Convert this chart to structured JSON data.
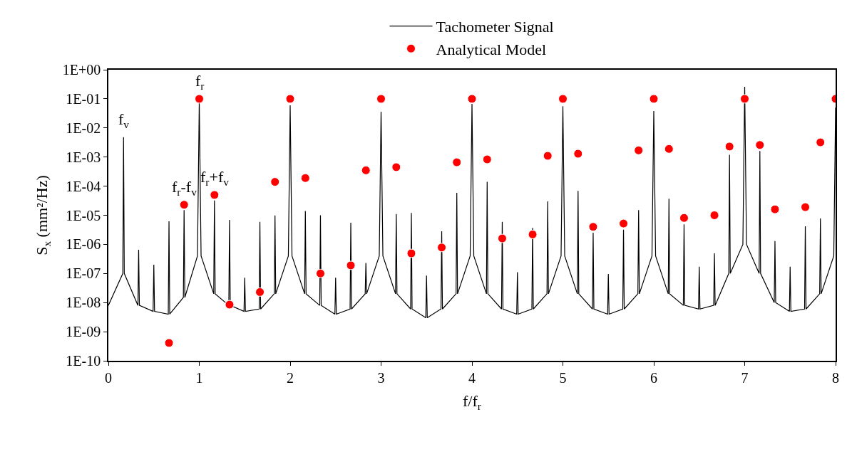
{
  "chart_data": {
    "type": "line",
    "xlabel": "f/f$_{r}$",
    "ylabel": "S$_{x}$ (mm²/Hz)",
    "log": "y",
    "legend": "top",
    "xlim": [
      0,
      8
    ],
    "xticks": [
      0,
      1,
      2,
      3,
      4,
      5,
      6,
      7,
      8
    ],
    "ylim": [
      1e-10,
      1
    ],
    "yticks": [
      {
        "value": 1,
        "label": "1E+00"
      },
      {
        "value": 0.1,
        "label": "1E-01"
      },
      {
        "value": 0.01,
        "label": "1E-02"
      },
      {
        "value": 0.001,
        "label": "1E-03"
      },
      {
        "value": 0.0001,
        "label": "1E-04"
      },
      {
        "value": 1e-05,
        "label": "1E-05"
      },
      {
        "value": 1e-06,
        "label": "1E-06"
      },
      {
        "value": 1e-07,
        "label": "1E-07"
      },
      {
        "value": 1e-08,
        "label": "1E-08"
      },
      {
        "value": 1e-09,
        "label": "1E-09"
      },
      {
        "value": 1e-10,
        "label": "1E-10"
      }
    ],
    "annotations": [
      {
        "text": "f$_{v}$",
        "x": 0.167,
        "y": 0.0048
      },
      {
        "text": "f$_{r}$",
        "x": 1,
        "y": 0.1
      },
      {
        "text": "f$_{r}$-f$_{v}$",
        "x": 0.833,
        "y": 2.3e-05
      },
      {
        "text": "f$_{r}$+f$_{v}$",
        "x": 1.167,
        "y": 5e-05
      }
    ],
    "series": [
      {
        "name": "Tachometer Signal",
        "color": "#000000",
        "marker": "none",
        "line_style": "solid",
        "x": [
          0,
          0.159,
          0.167,
          0.175,
          0.325,
          0.333,
          0.341,
          0.492,
          0.5,
          0.508,
          0.659,
          0.667,
          0.675,
          0.825,
          0.833,
          0.841,
          0.98,
          1,
          1.02,
          1.159,
          1.167,
          1.175,
          1.325,
          1.333,
          1.341,
          1.492,
          1.5,
          1.508,
          1.659,
          1.667,
          1.675,
          1.825,
          1.833,
          1.841,
          1.98,
          2,
          2.02,
          2.159,
          2.167,
          2.175,
          2.325,
          2.333,
          2.341,
          2.492,
          2.5,
          2.508,
          2.659,
          2.667,
          2.675,
          2.825,
          2.833,
          2.841,
          2.98,
          3,
          3.02,
          3.159,
          3.167,
          3.175,
          3.325,
          3.333,
          3.341,
          3.492,
          3.5,
          3.508,
          3.659,
          3.667,
          3.675,
          3.825,
          3.833,
          3.841,
          3.98,
          4,
          4.02,
          4.159,
          4.167,
          4.175,
          4.325,
          4.333,
          4.341,
          4.492,
          4.5,
          4.508,
          4.659,
          4.667,
          4.675,
          4.825,
          4.833,
          4.841,
          4.98,
          5,
          5.02,
          5.159,
          5.167,
          5.175,
          5.325,
          5.333,
          5.341,
          5.492,
          5.5,
          5.508,
          5.659,
          5.667,
          5.675,
          5.825,
          5.833,
          5.841,
          5.98,
          6,
          6.02,
          6.159,
          6.167,
          6.175,
          6.325,
          6.333,
          6.341,
          6.492,
          6.5,
          6.508,
          6.659,
          6.667,
          6.675,
          6.825,
          6.833,
          6.841,
          6.98,
          7,
          7.02,
          7.159,
          7.167,
          7.175,
          7.325,
          7.333,
          7.341,
          7.492,
          7.5,
          7.508,
          7.659,
          7.667,
          7.675,
          7.825,
          7.833,
          7.841,
          7.98,
          8
        ],
        "values": [
          8e-09,
          1e-07,
          0.0048,
          1e-07,
          8e-09,
          6.5e-07,
          8e-09,
          5e-09,
          2e-07,
          5e-09,
          4e-09,
          6.2e-06,
          4e-09,
          1.5e-08,
          1.5e-05,
          1.5e-08,
          4e-07,
          0.079,
          4e-07,
          2e-08,
          3.2e-05,
          2e-08,
          8e-09,
          6.9e-06,
          8e-09,
          5e-09,
          7.2e-08,
          5e-09,
          6e-09,
          5.9e-06,
          6e-09,
          2e-08,
          9.8e-06,
          2e-08,
          4e-07,
          0.06,
          4e-07,
          2e-08,
          1.4e-05,
          2e-08,
          8e-09,
          1e-05,
          8e-09,
          4e-09,
          7.2e-08,
          4e-09,
          6e-09,
          5.5e-06,
          6e-09,
          2e-08,
          2.3e-07,
          2e-08,
          4e-07,
          0.036,
          4e-07,
          2e-08,
          1.1e-05,
          2e-08,
          6e-09,
          1.2e-05,
          6e-09,
          3e-09,
          8.5e-08,
          3e-09,
          6e-09,
          2.8e-06,
          6e-09,
          2e-08,
          5.9e-05,
          2e-08,
          4e-07,
          0.067,
          4e-07,
          2e-08,
          0.00014,
          2e-08,
          6e-09,
          5.9e-06,
          6e-09,
          4e-09,
          1.1e-07,
          4e-09,
          6e-09,
          3.7e-06,
          6e-09,
          2e-08,
          3e-05,
          2e-08,
          4e-07,
          0.056,
          4e-07,
          2e-08,
          6.9e-05,
          2e-08,
          6e-09,
          2.5e-06,
          6e-09,
          4e-09,
          9.6e-08,
          4e-09,
          6e-09,
          3.2e-06,
          6e-09,
          2e-08,
          1.5e-05,
          2e-08,
          4e-07,
          0.038,
          4e-07,
          2e-08,
          3.7e-05,
          2e-08,
          8e-09,
          4.9e-06,
          8e-09,
          6e-09,
          1.7e-07,
          6e-09,
          8e-09,
          4.9e-07,
          8e-09,
          1e-07,
          0.0012,
          1e-07,
          1e-06,
          0.26,
          1e-06,
          1e-07,
          0.0016,
          1e-07,
          1e-08,
          1.3e-06,
          1e-08,
          5e-09,
          1.7e-07,
          5e-09,
          6e-09,
          4.2e-06,
          6e-09,
          2e-08,
          7.8e-06,
          2e-08,
          4e-07,
          0.05
        ]
      },
      {
        "name": "Analytical Model",
        "type": "scatter",
        "color": "#ff0000",
        "marker": "circle",
        "x": [
          0.667,
          0.833,
          1,
          1.167,
          1.333,
          1.667,
          1.833,
          2,
          2.167,
          2.333,
          2.667,
          2.833,
          3,
          3.167,
          3.333,
          3.667,
          3.833,
          4,
          4.167,
          4.333,
          4.667,
          4.833,
          5,
          5.167,
          5.333,
          5.667,
          5.833,
          6,
          6.167,
          6.333,
          6.667,
          6.833,
          7,
          7.167,
          7.333,
          7.667,
          7.833,
          8
        ],
        "values": [
          4.1e-10,
          2.3e-05,
          0.1,
          5e-05,
          8.5e-09,
          2.3e-08,
          0.00014,
          0.1,
          0.00019,
          1e-07,
          1.9e-07,
          0.00035,
          0.1,
          0.00045,
          4.9e-07,
          7.8e-07,
          0.00066,
          0.1,
          0.00083,
          1.6e-06,
          2.2e-06,
          0.0011,
          0.1,
          0.0013,
          4e-06,
          5.2e-06,
          0.0017,
          0.1,
          0.0019,
          8.1e-06,
          1e-05,
          0.0023,
          0.1,
          0.0026,
          1.6e-05,
          1.9e-05,
          0.0032,
          0.1
        ]
      }
    ]
  }
}
